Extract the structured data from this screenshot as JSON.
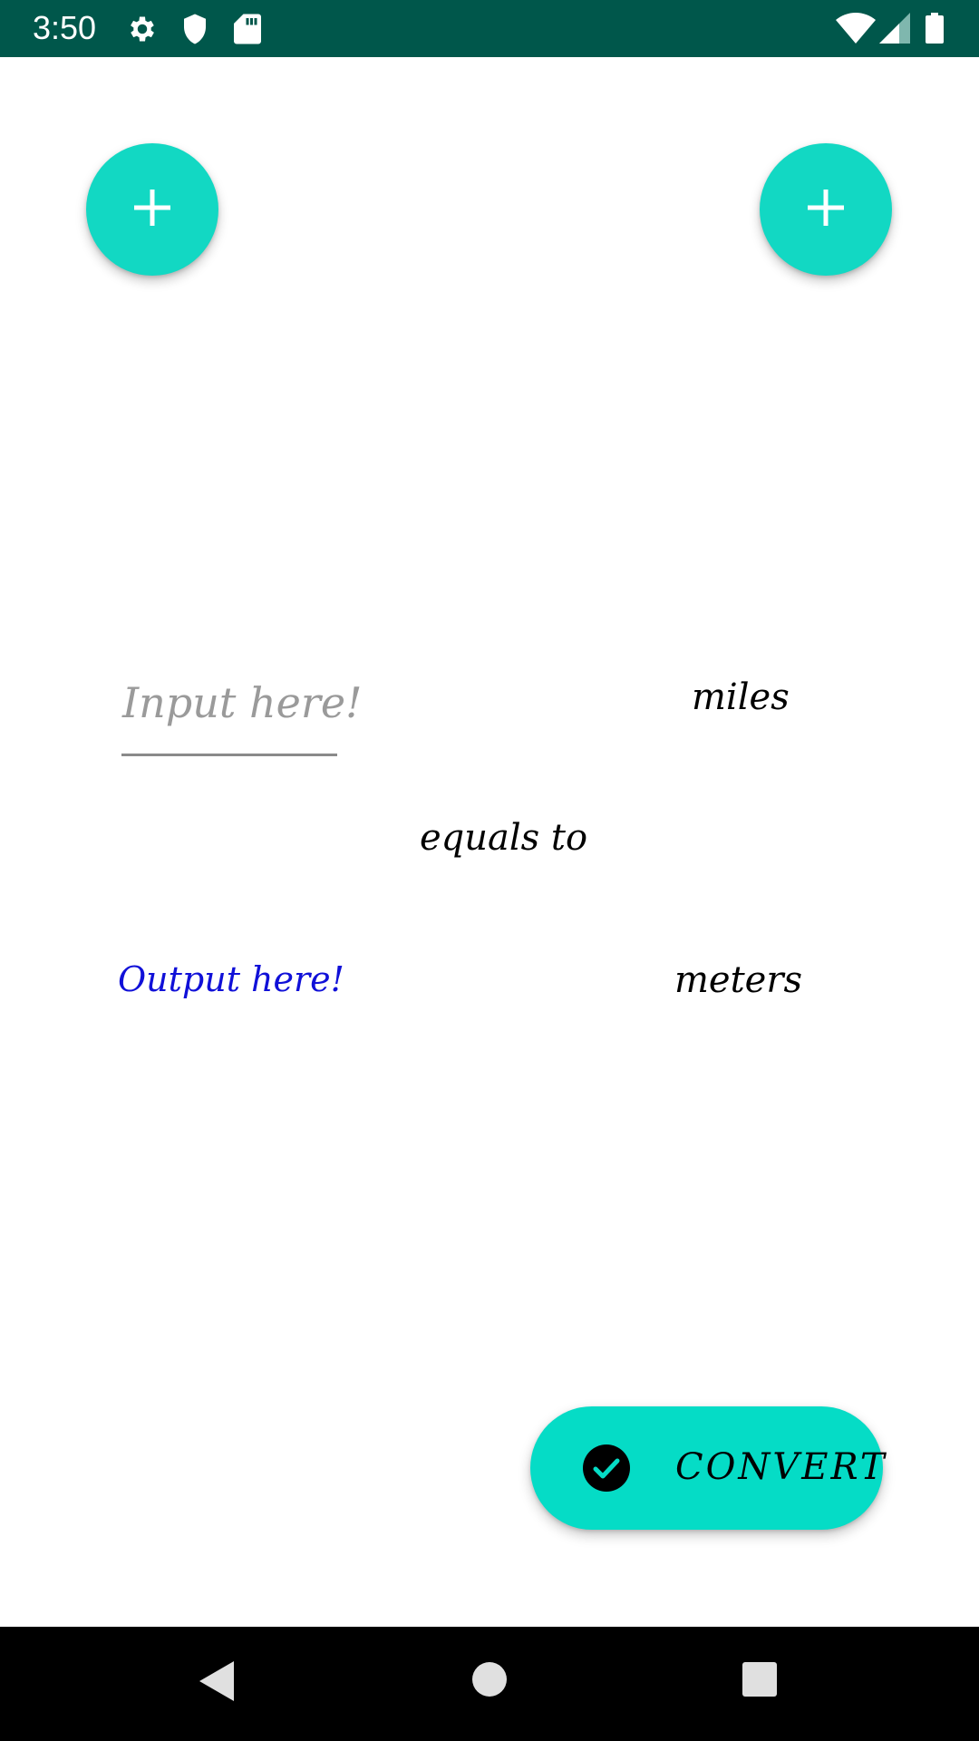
{
  "status_bar": {
    "time": "3:50",
    "icons": [
      "settings-icon",
      "shield-icon",
      "sd-card-icon",
      "wifi-icon",
      "signal-icon",
      "battery-icon"
    ],
    "background": "#00574b"
  },
  "fabs": {
    "left_icon": "plus-icon",
    "right_icon": "plus-icon",
    "color": "#12d8c3"
  },
  "converter": {
    "input_placeholder": "Input here!",
    "input_unit": "miles",
    "equals_label": "equals to",
    "output_text": "Output here!",
    "output_unit": "meters",
    "output_color": "#1010d8"
  },
  "convert_button": {
    "label": "CONVERT",
    "icon": "check-circle-icon",
    "color": "#05dcc6"
  },
  "nav_bar": {
    "buttons": [
      "back-icon",
      "home-icon",
      "recents-icon"
    ]
  }
}
